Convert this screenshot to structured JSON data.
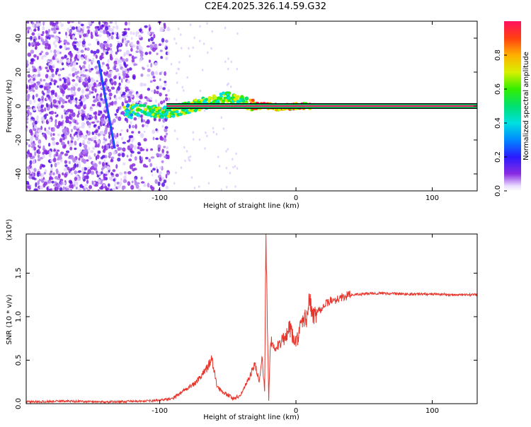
{
  "title": "C2E4.2025.326.14.59.G32",
  "chart_data": [
    {
      "type": "heatmap",
      "panel": "spectrogram",
      "xlabel": "Height of straight line (km)",
      "ylabel": "Frequency (Hz)",
      "xlim": [
        -198,
        133
      ],
      "ylim": [
        -50,
        50
      ],
      "xticks": [
        -100,
        0,
        100
      ],
      "xtick_labels": [
        "-100",
        "0",
        "100"
      ],
      "yticks": [
        -40,
        -20,
        0,
        20,
        40
      ],
      "ytick_labels": [
        "-40",
        "-20",
        "0",
        "20",
        "40"
      ],
      "colorbar": {
        "label": "Normalized spectral amplitude",
        "range": [
          0,
          1
        ],
        "ticks": [
          0.0,
          0.2,
          0.4,
          0.6,
          0.8
        ],
        "tick_labels": [
          "0.0",
          "0.2",
          "0.4",
          "0.6",
          "0.8"
        ]
      },
      "features": {
        "noise_region_x": [
          -198,
          -93
        ],
        "carrier_line_hz": 0,
        "carrier_x_start": -95,
        "tilted_streak": {
          "x": [
            -145,
            -133
          ],
          "y": [
            27,
            -25
          ]
        },
        "ridge": {
          "x": [
            -125,
            -110,
            -100,
            -90,
            -80,
            -70,
            -60,
            -50,
            -40,
            -30,
            -20,
            -10,
            0,
            10
          ],
          "y": [
            -3,
            -2,
            -4,
            -3,
            -1,
            1,
            3,
            5,
            3,
            0,
            0,
            -1,
            0,
            0
          ]
        }
      }
    },
    {
      "type": "line",
      "panel": "snr",
      "xlabel": "Height of straight line (km)",
      "ylabel": "SNR (10 * v/v)",
      "y_multiplier_label": "(x10⁴)",
      "xlim": [
        -198,
        133
      ],
      "ylim": [
        0,
        1.95
      ],
      "xticks": [
        -100,
        0,
        100
      ],
      "xtick_labels": [
        "-100",
        "0",
        "100"
      ],
      "yticks": [
        0.0,
        0.5,
        1.0,
        1.5
      ],
      "ytick_labels": [
        "0.0",
        "0.5",
        "1.0",
        "1.5"
      ],
      "series": [
        {
          "name": "SNR",
          "color": "#e8352b",
          "x": [
            -198,
            -170,
            -140,
            -110,
            -100,
            -90,
            -85,
            -80,
            -75,
            -70,
            -65,
            -62,
            -60,
            -58,
            -55,
            -50,
            -45,
            -40,
            -35,
            -30,
            -27,
            -25,
            -23,
            -22,
            -21,
            -20,
            -19,
            -18,
            -17,
            -15,
            -12,
            -10,
            -8,
            -5,
            -2,
            0,
            3,
            5,
            8,
            10,
            12,
            15,
            20,
            25,
            30,
            35,
            40,
            50,
            60,
            80,
            100,
            120,
            133
          ],
          "y": [
            0.02,
            0.03,
            0.02,
            0.03,
            0.04,
            0.06,
            0.12,
            0.18,
            0.22,
            0.3,
            0.42,
            0.52,
            0.38,
            0.2,
            0.15,
            0.1,
            0.05,
            0.12,
            0.28,
            0.45,
            0.25,
            0.55,
            0.15,
            1.95,
            0.9,
            0.05,
            0.6,
            0.7,
            0.65,
            0.62,
            0.68,
            0.82,
            0.7,
            0.88,
            0.75,
            0.7,
            0.85,
            0.95,
            1.0,
            1.2,
            1.0,
            1.05,
            1.12,
            1.18,
            1.2,
            1.23,
            1.25,
            1.26,
            1.27,
            1.26,
            1.26,
            1.25,
            1.25
          ]
        }
      ]
    }
  ]
}
